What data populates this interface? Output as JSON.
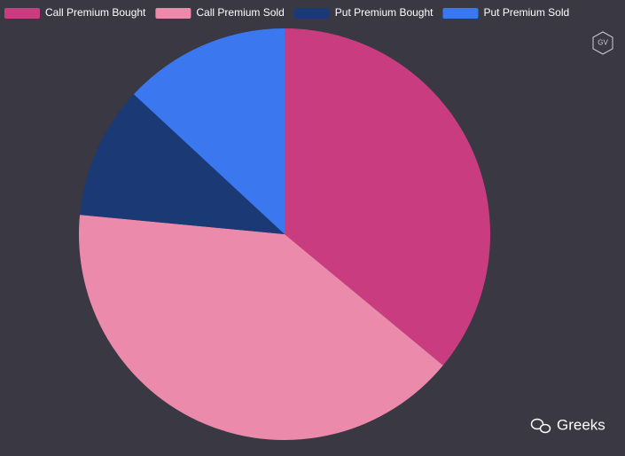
{
  "chart_data": {
    "type": "pie",
    "categories": [
      "Call Premium Bought",
      "Call Premium Sold",
      "Put Premium Bought",
      "Put Premium Sold"
    ],
    "values": [
      36,
      40.5,
      10.4,
      13.1
    ],
    "colors": [
      "#c93d80",
      "#ec8aab",
      "#1b3a75",
      "#3b78f0"
    ],
    "legend": "top-left"
  },
  "badge": "GV",
  "watermark": "Greeks"
}
